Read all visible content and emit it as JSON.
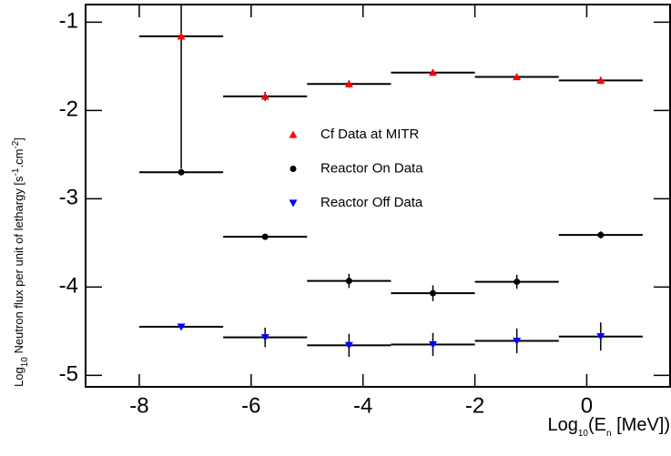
{
  "chart_data": {
    "type": "scatter",
    "x": [
      -7.25,
      -5.75,
      -4.25,
      -2.75,
      -1.25,
      0.25
    ],
    "xerr": [
      0.75,
      0.75,
      0.75,
      0.75,
      0.75,
      0.75
    ],
    "series": [
      {
        "name": "Cf Data at MITR",
        "color": "#ff0000",
        "marker": "triangle-up",
        "values": [
          -1.16,
          -1.84,
          -1.7,
          -1.57,
          -1.62,
          -1.66
        ],
        "yerr": [
          1.5,
          0.05,
          0.04,
          0.02,
          0.03,
          0.04
        ]
      },
      {
        "name": "Reactor On Data",
        "color": "#000000",
        "marker": "circle",
        "values": [
          -2.7,
          -3.43,
          -3.93,
          -4.07,
          -3.94,
          -3.41
        ],
        "yerr": [
          0.02,
          0.02,
          0.08,
          0.09,
          0.08,
          0.04
        ]
      },
      {
        "name": "Reactor Off Data",
        "color": "#0000ff",
        "marker": "triangle-down",
        "values": [
          -4.45,
          -4.57,
          -4.66,
          -4.65,
          -4.61,
          -4.56
        ],
        "yerr": [
          0.03,
          0.11,
          0.13,
          0.13,
          0.14,
          0.16
        ]
      }
    ],
    "xlim": [
      -8.96,
      1.49
    ],
    "ylim": [
      -5.13,
      -0.8
    ],
    "xticks": [
      -8,
      -6,
      -4,
      -2,
      0
    ],
    "yticks": [
      -1,
      -2,
      -3,
      -4,
      -5
    ],
    "xlabel": [
      "Log",
      "10",
      "(E",
      "n",
      " [MeV])"
    ],
    "ylabel": [
      "Log",
      "10",
      " Neutron flux per unit of lethargy [s",
      "-1",
      ".cm",
      "-2",
      "]"
    ]
  }
}
